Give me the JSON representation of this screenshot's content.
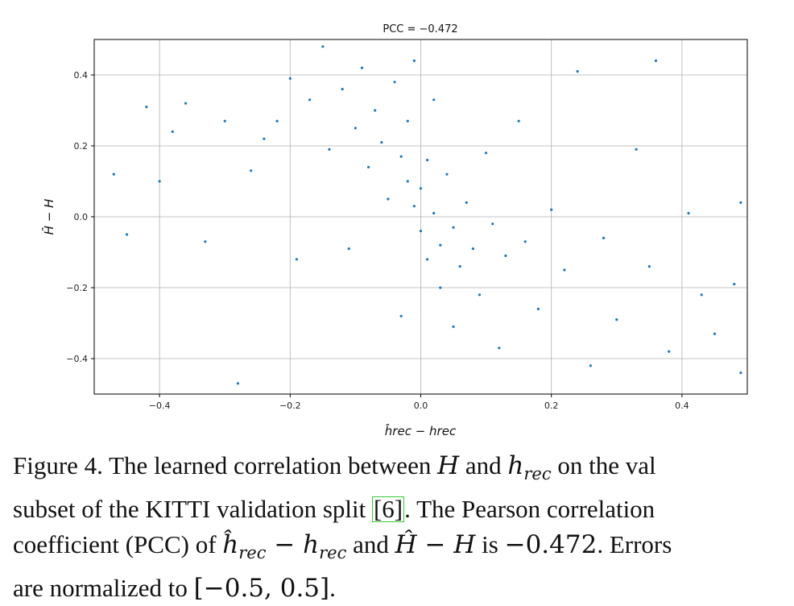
{
  "chart_data": {
    "type": "scatter",
    "title_prefix": "PCC = ",
    "title_value": "−0.472",
    "xlabel": "ĥrec − hrec",
    "ylabel": "Ĥ − H",
    "xlim": [
      -0.5,
      0.5
    ],
    "ylim": [
      -0.5,
      0.5
    ],
    "xticks": [
      -0.4,
      -0.2,
      0.0,
      0.2,
      0.4
    ],
    "xtick_labels": [
      "−0.4",
      "−0.2",
      "0.0",
      "0.2",
      "0.4"
    ],
    "yticks": [
      -0.4,
      -0.2,
      0.0,
      0.2,
      0.4
    ],
    "ytick_labels": [
      "−0.4",
      "−0.2",
      "0.0",
      "0.2",
      "0.4"
    ],
    "grid": true,
    "point_color": "#1f77b4",
    "pcc": -0.472,
    "points": [
      [
        -0.45,
        -0.05
      ],
      [
        -0.42,
        0.31
      ],
      [
        -0.4,
        0.1
      ],
      [
        -0.38,
        0.24
      ],
      [
        -0.36,
        0.32
      ],
      [
        -0.33,
        -0.07
      ],
      [
        -0.3,
        0.27
      ],
      [
        -0.28,
        -0.47
      ],
      [
        -0.26,
        0.13
      ],
      [
        -0.24,
        0.22
      ],
      [
        -0.22,
        0.27
      ],
      [
        -0.2,
        0.39
      ],
      [
        -0.19,
        -0.12
      ],
      [
        -0.17,
        0.33
      ],
      [
        -0.15,
        0.48
      ],
      [
        -0.14,
        0.19
      ],
      [
        -0.12,
        0.36
      ],
      [
        -0.11,
        -0.09
      ],
      [
        -0.1,
        0.25
      ],
      [
        -0.09,
        0.42
      ],
      [
        -0.08,
        0.14
      ],
      [
        -0.07,
        0.3
      ],
      [
        -0.06,
        0.21
      ],
      [
        -0.05,
        0.05
      ],
      [
        -0.04,
        0.38
      ],
      [
        -0.03,
        0.17
      ],
      [
        -0.03,
        -0.28
      ],
      [
        -0.02,
        0.1
      ],
      [
        -0.02,
        0.27
      ],
      [
        -0.01,
        0.03
      ],
      [
        -0.01,
        0.44
      ],
      [
        0.0,
        0.08
      ],
      [
        0.0,
        -0.04
      ],
      [
        0.01,
        0.16
      ],
      [
        0.01,
        -0.12
      ],
      [
        0.02,
        0.01
      ],
      [
        0.02,
        0.33
      ],
      [
        0.03,
        -0.08
      ],
      [
        0.03,
        -0.2
      ],
      [
        0.04,
        0.12
      ],
      [
        0.05,
        -0.03
      ],
      [
        0.05,
        -0.31
      ],
      [
        0.06,
        -0.14
      ],
      [
        0.07,
        0.04
      ],
      [
        0.08,
        -0.09
      ],
      [
        0.09,
        -0.22
      ],
      [
        0.1,
        0.18
      ],
      [
        0.11,
        -0.02
      ],
      [
        0.12,
        -0.37
      ],
      [
        0.13,
        -0.11
      ],
      [
        0.15,
        0.27
      ],
      [
        0.16,
        -0.07
      ],
      [
        0.18,
        -0.26
      ],
      [
        0.2,
        0.02
      ],
      [
        0.22,
        -0.15
      ],
      [
        0.24,
        0.41
      ],
      [
        0.26,
        -0.42
      ],
      [
        0.28,
        -0.06
      ],
      [
        0.3,
        -0.29
      ],
      [
        0.33,
        0.19
      ],
      [
        0.35,
        -0.14
      ],
      [
        0.38,
        -0.38
      ],
      [
        0.41,
        0.01
      ],
      [
        0.43,
        -0.22
      ],
      [
        0.45,
        -0.33
      ],
      [
        0.48,
        -0.19
      ],
      [
        0.49,
        -0.44
      ],
      [
        0.49,
        0.04
      ],
      [
        -0.47,
        0.12
      ],
      [
        0.36,
        0.44
      ]
    ]
  },
  "caption": {
    "line1_pre": "Figure 4. The learned correlation between ",
    "line1_H": "H",
    "line1_mid": " and ",
    "line1_h": "h",
    "line1_hsub": "rec",
    "line1_post": " on the val",
    "line2_pre": "subset of the KITTI validation split ",
    "line2_cite": "[6]",
    "line2_post": ".  The Pearson correlation",
    "line3_pre": "coefficient (PCC) of ",
    "line3_hhat": "ĥ",
    "line3_hhatsub": "rec",
    "line3_minus": " − ",
    "line3_h": "h",
    "line3_hsub": "rec",
    "line3_and": " and ",
    "line3_Hhat": "Ĥ",
    "line3_minus2": " − ",
    "line3_H": "H",
    "line3_is": " is ",
    "line3_val": "−0.472",
    "line3_post": ".  Errors",
    "line4_pre": "are normalized to ",
    "line4_range": "[−0.5, 0.5]",
    "line4_post": "."
  }
}
